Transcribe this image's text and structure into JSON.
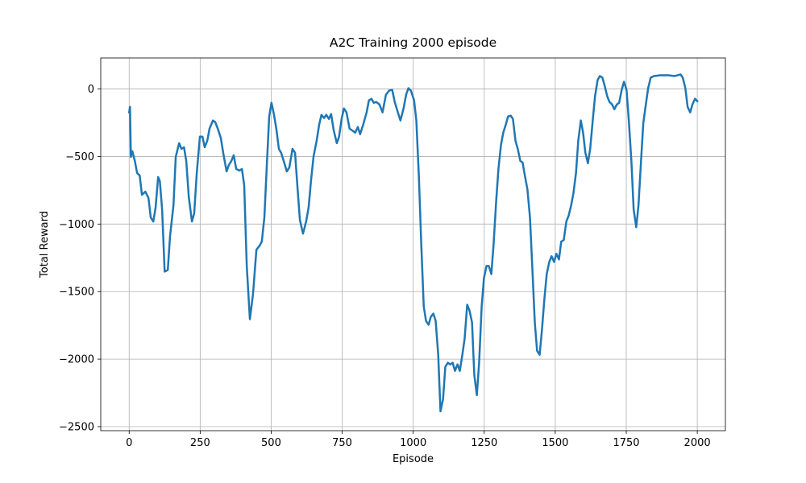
{
  "chart_data": {
    "type": "line",
    "title": "A2C Training 2000 episode",
    "x_label": "Episode",
    "y_label": "Total Reward",
    "color": "#1f77b4",
    "grid": true,
    "xlim": [
      -100,
      2099
    ],
    "ylim": [
      -2530,
      230
    ],
    "xticks": [
      0,
      250,
      500,
      750,
      1000,
      1250,
      1500,
      1750,
      2000
    ],
    "yticks": [
      {
        "value": -2500,
        "label": "−2500"
      },
      {
        "value": -2000,
        "label": "−2000"
      },
      {
        "value": -1500,
        "label": "−1500"
      },
      {
        "value": -1000,
        "label": "−1000"
      },
      {
        "value": -500,
        "label": "−500"
      },
      0
    ],
    "x": [
      0,
      3,
      6,
      11,
      20,
      28,
      37,
      45,
      57,
      68,
      76,
      85,
      93,
      102,
      108,
      116,
      125,
      136,
      144,
      156,
      164,
      176,
      184,
      193,
      201,
      210,
      221,
      229,
      238,
      249,
      258,
      266,
      275,
      283,
      295,
      303,
      312,
      323,
      331,
      343,
      351,
      360,
      368,
      377,
      388,
      397,
      405,
      414,
      425,
      436,
      448,
      459,
      467,
      476,
      484,
      493,
      501,
      510,
      518,
      527,
      535,
      544,
      555,
      564,
      575,
      584,
      592,
      601,
      612,
      623,
      632,
      640,
      649,
      660,
      669,
      677,
      686,
      694,
      703,
      711,
      720,
      731,
      739,
      748,
      756,
      765,
      776,
      788,
      796,
      805,
      813,
      824,
      836,
      844,
      853,
      861,
      870,
      881,
      892,
      904,
      915,
      926,
      935,
      946,
      955,
      966,
      975,
      983,
      992,
      1003,
      1011,
      1020,
      1028,
      1037,
      1045,
      1054,
      1062,
      1071,
      1079,
      1088,
      1096,
      1105,
      1113,
      1122,
      1130,
      1139,
      1147,
      1156,
      1164,
      1173,
      1181,
      1190,
      1198,
      1207,
      1215,
      1224,
      1232,
      1241,
      1249,
      1258,
      1266,
      1275,
      1283,
      1292,
      1300,
      1309,
      1317,
      1326,
      1334,
      1343,
      1351,
      1360,
      1368,
      1377,
      1385,
      1394,
      1402,
      1411,
      1419,
      1428,
      1436,
      1445,
      1453,
      1462,
      1470,
      1479,
      1487,
      1496,
      1504,
      1513,
      1521,
      1530,
      1539,
      1547,
      1556,
      1564,
      1573,
      1581,
      1590,
      1598,
      1606,
      1615,
      1623,
      1632,
      1640,
      1649,
      1657,
      1666,
      1674,
      1683,
      1691,
      1700,
      1708,
      1717,
      1725,
      1734,
      1742,
      1751,
      1759,
      1768,
      1776,
      1785,
      1793,
      1802,
      1810,
      1819,
      1827,
      1836,
      1847,
      1870,
      1898,
      1921,
      1941,
      1949,
      1958,
      1966,
      1975,
      1983,
      1992,
      2000
    ],
    "values": [
      -173,
      -132,
      -502,
      -460,
      -532,
      -622,
      -640,
      -783,
      -760,
      -807,
      -951,
      -981,
      -879,
      -652,
      -682,
      -891,
      -1352,
      -1340,
      -1089,
      -861,
      -502,
      -401,
      -443,
      -431,
      -532,
      -801,
      -981,
      -921,
      -622,
      -353,
      -353,
      -431,
      -383,
      -293,
      -233,
      -245,
      -293,
      -365,
      -472,
      -610,
      -562,
      -532,
      -490,
      -592,
      -604,
      -592,
      -712,
      -1310,
      -1705,
      -1519,
      -1190,
      -1160,
      -1130,
      -951,
      -592,
      -203,
      -102,
      -191,
      -293,
      -443,
      -472,
      -532,
      -610,
      -580,
      -443,
      -472,
      -712,
      -969,
      -1071,
      -981,
      -873,
      -682,
      -502,
      -383,
      -263,
      -191,
      -215,
      -191,
      -221,
      -185,
      -305,
      -401,
      -353,
      -221,
      -144,
      -173,
      -293,
      -311,
      -323,
      -281,
      -335,
      -263,
      -173,
      -84,
      -72,
      -102,
      -96,
      -114,
      -173,
      -42,
      -12,
      -6,
      -96,
      -173,
      -233,
      -144,
      -42,
      6,
      -12,
      -84,
      -233,
      -652,
      -1130,
      -1609,
      -1717,
      -1746,
      -1687,
      -1663,
      -1717,
      -1968,
      -2387,
      -2297,
      -2057,
      -2027,
      -2039,
      -2027,
      -2087,
      -2039,
      -2087,
      -1968,
      -1848,
      -1597,
      -1639,
      -1728,
      -2117,
      -2267,
      -2027,
      -1609,
      -1400,
      -1310,
      -1310,
      -1370,
      -1148,
      -831,
      -592,
      -413,
      -323,
      -263,
      -203,
      -197,
      -221,
      -383,
      -443,
      -532,
      -544,
      -652,
      -742,
      -951,
      -1310,
      -1728,
      -1938,
      -1968,
      -1788,
      -1549,
      -1370,
      -1280,
      -1238,
      -1280,
      -1220,
      -1262,
      -1130,
      -1118,
      -981,
      -939,
      -861,
      -772,
      -622,
      -383,
      -233,
      -323,
      -472,
      -550,
      -443,
      -233,
      -54,
      66,
      96,
      84,
      24,
      -54,
      -96,
      -114,
      -150,
      -114,
      -102,
      -6,
      54,
      -6,
      -233,
      -532,
      -891,
      -1023,
      -861,
      -532,
      -251,
      -114,
      6,
      84,
      96,
      102,
      102,
      96,
      108,
      84,
      6,
      -132,
      -173,
      -114,
      -72,
      -90
    ]
  }
}
